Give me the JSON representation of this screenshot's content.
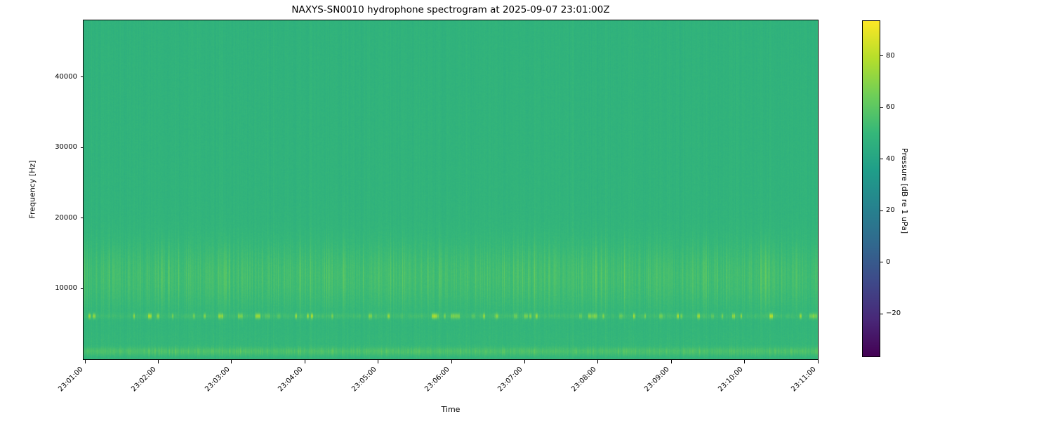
{
  "figure": {
    "background_color": "#ffffff"
  },
  "chart_data": {
    "type": "heatmap",
    "title": "NAXYS-SN0010 hydrophone spectrogram at 2025-09-07 23:01:00Z",
    "xlabel": "Time",
    "ylabel": "Frequency [Hz]",
    "x_tick_labels": [
      "23:01:00",
      "23:02:00",
      "23:03:00",
      "23:04:00",
      "23:05:00",
      "23:06:00",
      "23:07:00",
      "23:08:00",
      "23:09:00",
      "23:10:00",
      "23:11:00"
    ],
    "x_axis_range": [
      "23:01:00",
      "23:11:00"
    ],
    "y_ticks": [
      {
        "value": 10000,
        "label": "10000"
      },
      {
        "value": 20000,
        "label": "20000"
      },
      {
        "value": 30000,
        "label": "30000"
      },
      {
        "value": 40000,
        "label": "40000"
      }
    ],
    "y_axis_range_hz": [
      0,
      48000
    ],
    "grid": false,
    "legend": "none",
    "colormap": "viridis",
    "colormap_stops_bottom_to_top": [
      "#440154",
      "#482878",
      "#3e4989",
      "#31688e",
      "#26828e",
      "#1f9e89",
      "#35b779",
      "#6ece58",
      "#b5de2b",
      "#fde725"
    ],
    "colorbar": {
      "label": "Pressure [dB re 1 uPa]",
      "ticks": [
        {
          "value": 80,
          "label": "80"
        },
        {
          "value": 60,
          "label": "60"
        },
        {
          "value": 40,
          "label": "40"
        },
        {
          "value": 20,
          "label": "20"
        },
        {
          "value": 0,
          "label": "0"
        },
        {
          "value": -20,
          "label": "−20"
        }
      ],
      "vmin_db": -36.5,
      "vmax_db": 93.5
    },
    "spectrogram_content": {
      "description": "Broadband ambient noise ~48 dB re 1 uPa across 0-48 kHz with fine vertical time striping; slightly elevated lighter-green noise band ~8-16 kHz; intermittent yellow-green tonal pulses near 6.2 kHz reaching ~78 dB; bright narrow low-frequency band near 1-1.5 kHz; no gaps over 23:01:00-23:11:00",
      "background_level_db": 47.6,
      "level_tilt_db_bottom_minus_top": 0.9,
      "column_stripe_sigma_db": 0.9,
      "pixel_noise_db": 1.2,
      "bands": [
        {
          "name": "mid-noise-band",
          "center_hz": 11800,
          "sigma_hz": 3400,
          "gain_db": 3.6,
          "stripe_gain_db": 1.6
        },
        {
          "name": "tonal-pulse-row",
          "center_hz": 6160,
          "sigma_hz": 260,
          "gain_db": 2.0,
          "pulse_max_db": 30
        },
        {
          "name": "low-frequency-band",
          "center_hz": 1150,
          "sigma_hz": 420,
          "gain_db": 5.5,
          "stripe_gain_db": 1.2
        },
        {
          "name": "low-broad-elevation",
          "center_hz": 2600,
          "sigma_hz": 1100,
          "gain_db": 1.2
        }
      ]
    }
  }
}
